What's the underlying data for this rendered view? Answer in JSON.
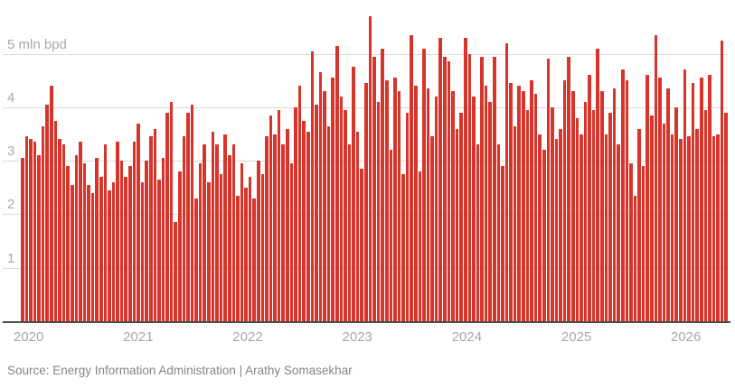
{
  "page": {
    "background": "#ffffff"
  },
  "chart_data": {
    "type": "bar",
    "title": "",
    "unit": "mln bpd",
    "bar_color": "#d6352b",
    "gridline_color": "#d9d9d9",
    "axis_line_color": "#4d4d4d",
    "tick_text_color": "#a8a8a8",
    "axis": {
      "ylim": [
        0,
        5.8
      ],
      "grid": "horizontal",
      "y_ticks": [
        {
          "value": 5,
          "label": "5 mln bpd"
        },
        {
          "value": 4,
          "label": "4"
        },
        {
          "value": 3,
          "label": "3"
        },
        {
          "value": 2,
          "label": "2"
        },
        {
          "value": 1,
          "label": "1"
        }
      ],
      "x_labels": [
        "2020",
        "2021",
        "2022",
        "2023",
        "2024",
        "2025",
        "2026"
      ]
    },
    "years": [
      {
        "year": "2020",
        "values": [
          3.05,
          3.45,
          3.4,
          3.35,
          3.1,
          3.65,
          4.05,
          4.4,
          3.75,
          3.4,
          3.3,
          2.9,
          2.55,
          3.1,
          3.35,
          2.95,
          2.55,
          2.4,
          3.05,
          2.7,
          3.3,
          2.45,
          2.6,
          3.35,
          3.0,
          2.7
        ]
      },
      {
        "year": "2021",
        "values": [
          2.9,
          3.35,
          3.7,
          2.6,
          3.0,
          3.45,
          3.6,
          2.65,
          3.05,
          3.9,
          4.1,
          1.85,
          2.8,
          3.45,
          3.9,
          4.05,
          2.3,
          2.95,
          3.3,
          2.6,
          3.55,
          3.3,
          2.75,
          3.5,
          3.1,
          3.3
        ]
      },
      {
        "year": "2022",
        "values": [
          2.35,
          2.95,
          2.5,
          2.7,
          2.3,
          3.0,
          2.75,
          3.45,
          3.85,
          3.5,
          3.95,
          3.3,
          3.6,
          2.95,
          4.0,
          4.4,
          3.75,
          3.55,
          5.05,
          4.05,
          4.65,
          4.3,
          3.65,
          4.55,
          5.15,
          4.2
        ]
      },
      {
        "year": "2023",
        "values": [
          3.95,
          3.3,
          4.75,
          3.55,
          2.85,
          4.45,
          5.7,
          4.95,
          4.1,
          5.1,
          4.5,
          3.2,
          4.55,
          4.3,
          2.75,
          3.9,
          5.35,
          4.4,
          2.8,
          5.1,
          4.35,
          3.45,
          4.2,
          5.3,
          4.95,
          4.85
        ]
      },
      {
        "year": "2024",
        "values": [
          4.3,
          3.6,
          3.9,
          5.3,
          5.0,
          4.2,
          3.3,
          4.95,
          4.4,
          4.1,
          4.95,
          3.3,
          2.9,
          5.2,
          4.45,
          3.65,
          4.4,
          4.3,
          3.95,
          4.5,
          4.25,
          3.5,
          3.2,
          4.9,
          4.0,
          3.4
        ]
      },
      {
        "year": "2025",
        "values": [
          3.6,
          4.5,
          4.95,
          4.3,
          3.8,
          3.5,
          4.1,
          4.6,
          3.95,
          5.1,
          4.3,
          3.5,
          3.9,
          4.35,
          3.3,
          4.7,
          4.5,
          2.95,
          2.35,
          3.6,
          2.9,
          4.6,
          3.85,
          5.35,
          4.55,
          3.7
        ]
      },
      {
        "year": "2026",
        "values": [
          4.35,
          3.5,
          4.0,
          3.4,
          4.7,
          3.45,
          4.45,
          3.6,
          4.55,
          3.95,
          4.6,
          3.45,
          3.5,
          5.25,
          3.9
        ]
      }
    ]
  },
  "footer": {
    "source": "Source: Energy Information Administration | Arathy Somasekhar"
  }
}
